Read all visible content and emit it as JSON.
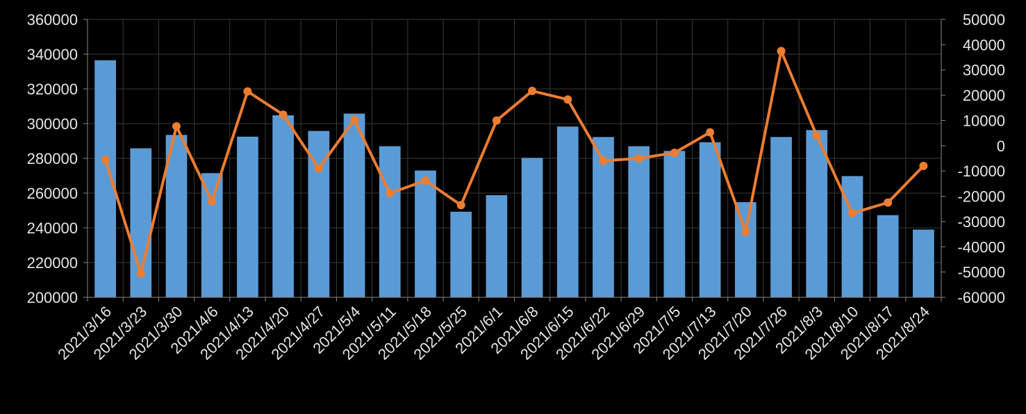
{
  "chart_data": {
    "type": "bar+line",
    "title": "",
    "xlabel": "",
    "ylabel": "",
    "y2label": "",
    "categories": [
      "2021/3/16",
      "2021/3/23",
      "2021/3/30",
      "2021/4/6",
      "2021/4/13",
      "2021/4/20",
      "2021/4/27",
      "2021/5/4",
      "2021/5/11",
      "2021/5/18",
      "2021/5/25",
      "2021/6/1",
      "2021/6/8",
      "2021/6/15",
      "2021/6/22",
      "2021/6/29",
      "2021/7/5",
      "2021/7/13",
      "2021/7/20",
      "2021/7/26",
      "2021/8/3",
      "2021/8/10",
      "2021/8/17",
      "2021/8/24"
    ],
    "tick_labels": [
      "2021/3/16",
      "2021/3/23",
      "2021/3/30",
      "2021/4/6",
      "2021/4/13",
      "2021/4/20",
      "2021/4/27",
      "2021/5/4",
      "2021/ 5/11",
      "2021/5/18",
      "2021/5/25",
      "2021/6/1",
      "2021/6/8",
      "2021/6/15",
      "2021/6/22",
      "2021/6/29",
      "2021/7/5",
      "2021/7/13",
      "2021/7/20",
      "2021/7/26",
      "2021/8/3",
      "2021/8/10",
      "2021/8/17",
      "2021/8/24"
    ],
    "series": [
      {
        "type": "bar",
        "axis": "left",
        "color": "#5b9bd5",
        "values": [
          336500,
          285800,
          293500,
          271500,
          292500,
          304800,
          295800,
          305800,
          287000,
          273000,
          249300,
          258800,
          280300,
          298300,
          292300,
          287000,
          284300,
          289300,
          254800,
          292300,
          296300,
          269800,
          247300,
          239000
        ]
      },
      {
        "type": "line",
        "axis": "right",
        "color": "#ed7d31",
        "values": [
          -5500,
          -50500,
          7700,
          -22000,
          21500,
          12300,
          -9000,
          10300,
          -18800,
          -13800,
          -23500,
          10000,
          21700,
          18300,
          -6000,
          -5000,
          -2800,
          5300,
          -34000,
          37500,
          4000,
          -26700,
          -22500,
          -8000
        ]
      }
    ],
    "ylim": [
      200000,
      360000
    ],
    "y2lim": [
      -60000,
      50000
    ],
    "yticks": [
      200000,
      220000,
      240000,
      260000,
      280000,
      300000,
      320000,
      340000,
      360000
    ],
    "y2ticks": [
      -60000,
      -50000,
      -40000,
      -30000,
      -20000,
      -10000,
      0,
      10000,
      20000,
      30000,
      40000,
      50000
    ],
    "ytick_labels": [
      "200000",
      "220000",
      "240000",
      "260000",
      "280000",
      "300000",
      "320000",
      "340000",
      "360000"
    ],
    "y2tick_labels": [
      "-60000",
      "-50000",
      "-40000",
      "-30000",
      "-20000",
      "-10000",
      "0",
      "10000",
      "20000",
      "30000",
      "40000",
      "50000"
    ],
    "grid": true,
    "legend": "none"
  }
}
